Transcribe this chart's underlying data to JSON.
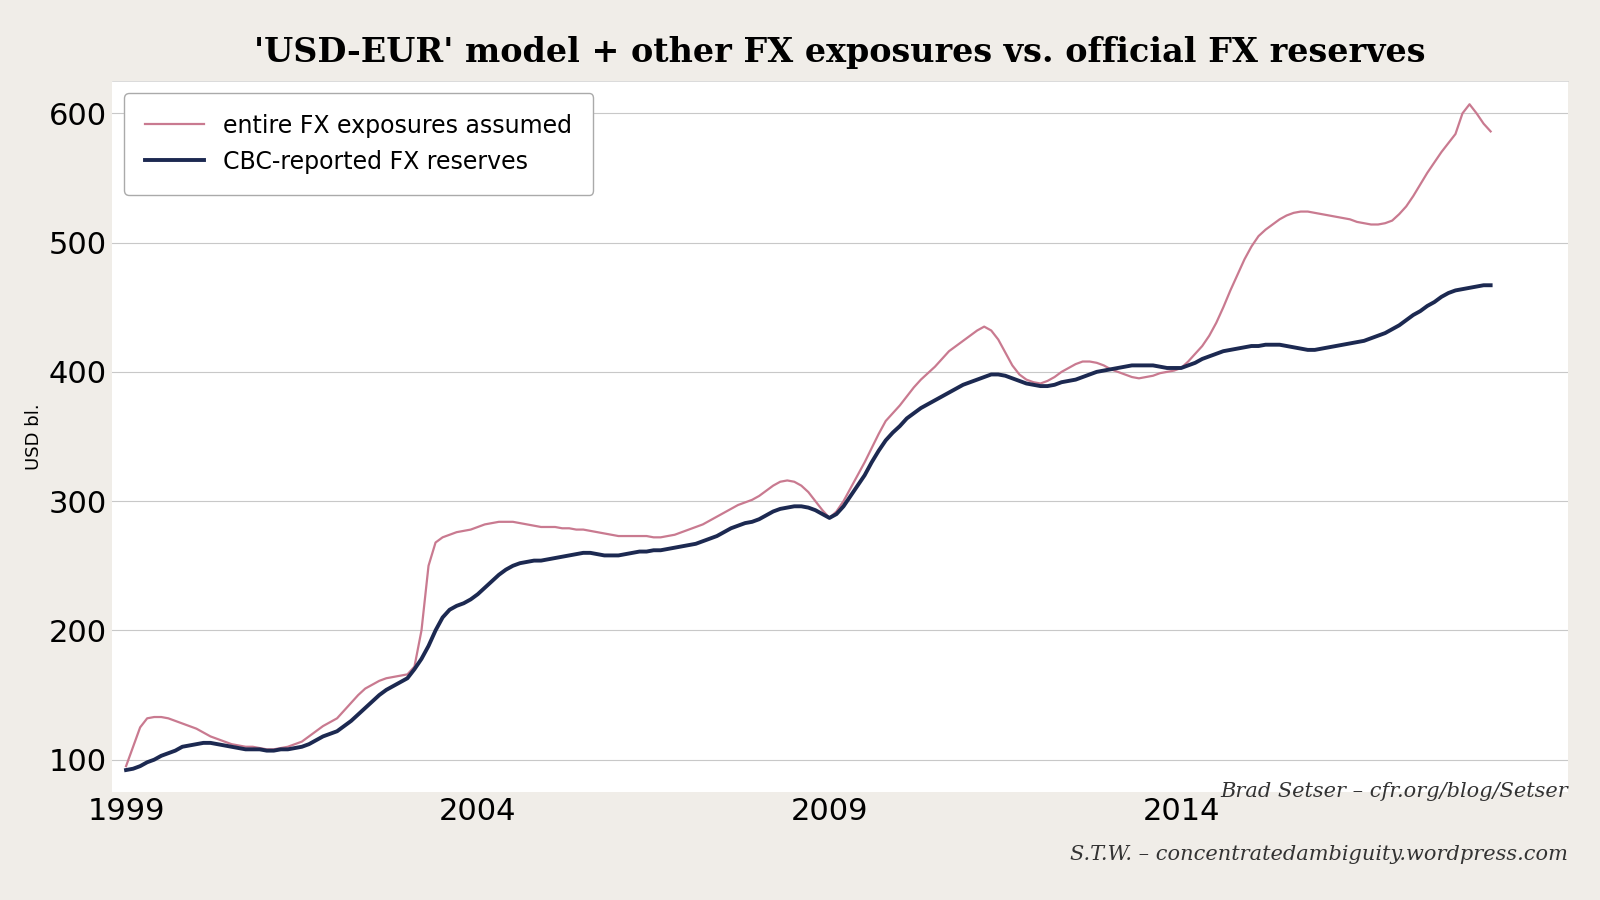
{
  "title": "'USD-EUR' model + other FX exposures vs. official FX reserves",
  "ylabel": "USD bl.",
  "background_color": "#ffffff",
  "fig_background_color": "#f0ede8",
  "line1_label": "CBC-reported FX reserves",
  "line1_color": "#1c2951",
  "line2_label": "entire FX exposures assumed",
  "line2_color": "#c97a90",
  "ylim": [
    75,
    625
  ],
  "yticks": [
    100,
    200,
    300,
    400,
    500,
    600
  ],
  "x_start_year": 1998.8,
  "x_end_year": 2019.5,
  "xticks_labels": [
    "1999",
    "2004",
    "2009",
    "2014"
  ],
  "xticks_values": [
    1999,
    2004,
    2009,
    2014
  ],
  "annotation1": "Brad Setser – cfr.org/blog/Setser",
  "annotation2": "S.T.W. – concentratedambiguity.wordpress.com",
  "cbc_data": [
    [
      1999.0,
      92
    ],
    [
      1999.1,
      93
    ],
    [
      1999.2,
      95
    ],
    [
      1999.3,
      98
    ],
    [
      1999.4,
      100
    ],
    [
      1999.5,
      103
    ],
    [
      1999.6,
      105
    ],
    [
      1999.7,
      107
    ],
    [
      1999.8,
      110
    ],
    [
      1999.9,
      111
    ],
    [
      2000.0,
      112
    ],
    [
      2000.1,
      113
    ],
    [
      2000.2,
      113
    ],
    [
      2000.3,
      112
    ],
    [
      2000.4,
      111
    ],
    [
      2000.5,
      110
    ],
    [
      2000.6,
      109
    ],
    [
      2000.7,
      108
    ],
    [
      2000.8,
      108
    ],
    [
      2000.9,
      108
    ],
    [
      2001.0,
      107
    ],
    [
      2001.1,
      107
    ],
    [
      2001.2,
      108
    ],
    [
      2001.3,
      108
    ],
    [
      2001.4,
      109
    ],
    [
      2001.5,
      110
    ],
    [
      2001.6,
      112
    ],
    [
      2001.7,
      115
    ],
    [
      2001.8,
      118
    ],
    [
      2001.9,
      120
    ],
    [
      2002.0,
      122
    ],
    [
      2002.1,
      126
    ],
    [
      2002.2,
      130
    ],
    [
      2002.3,
      135
    ],
    [
      2002.4,
      140
    ],
    [
      2002.5,
      145
    ],
    [
      2002.6,
      150
    ],
    [
      2002.7,
      154
    ],
    [
      2002.8,
      157
    ],
    [
      2002.9,
      160
    ],
    [
      2003.0,
      163
    ],
    [
      2003.1,
      170
    ],
    [
      2003.2,
      178
    ],
    [
      2003.3,
      188
    ],
    [
      2003.4,
      200
    ],
    [
      2003.5,
      210
    ],
    [
      2003.6,
      216
    ],
    [
      2003.7,
      219
    ],
    [
      2003.8,
      221
    ],
    [
      2003.9,
      224
    ],
    [
      2004.0,
      228
    ],
    [
      2004.1,
      233
    ],
    [
      2004.2,
      238
    ],
    [
      2004.3,
      243
    ],
    [
      2004.4,
      247
    ],
    [
      2004.5,
      250
    ],
    [
      2004.6,
      252
    ],
    [
      2004.7,
      253
    ],
    [
      2004.8,
      254
    ],
    [
      2004.9,
      254
    ],
    [
      2005.0,
      255
    ],
    [
      2005.1,
      256
    ],
    [
      2005.2,
      257
    ],
    [
      2005.3,
      258
    ],
    [
      2005.4,
      259
    ],
    [
      2005.5,
      260
    ],
    [
      2005.6,
      260
    ],
    [
      2005.7,
      259
    ],
    [
      2005.8,
      258
    ],
    [
      2005.9,
      258
    ],
    [
      2006.0,
      258
    ],
    [
      2006.1,
      259
    ],
    [
      2006.2,
      260
    ],
    [
      2006.3,
      261
    ],
    [
      2006.4,
      261
    ],
    [
      2006.5,
      262
    ],
    [
      2006.6,
      262
    ],
    [
      2006.7,
      263
    ],
    [
      2006.8,
      264
    ],
    [
      2006.9,
      265
    ],
    [
      2007.0,
      266
    ],
    [
      2007.1,
      267
    ],
    [
      2007.2,
      269
    ],
    [
      2007.3,
      271
    ],
    [
      2007.4,
      273
    ],
    [
      2007.5,
      276
    ],
    [
      2007.6,
      279
    ],
    [
      2007.7,
      281
    ],
    [
      2007.8,
      283
    ],
    [
      2007.9,
      284
    ],
    [
      2008.0,
      286
    ],
    [
      2008.1,
      289
    ],
    [
      2008.2,
      292
    ],
    [
      2008.3,
      294
    ],
    [
      2008.4,
      295
    ],
    [
      2008.5,
      296
    ],
    [
      2008.6,
      296
    ],
    [
      2008.7,
      295
    ],
    [
      2008.8,
      293
    ],
    [
      2008.9,
      290
    ],
    [
      2009.0,
      287
    ],
    [
      2009.1,
      290
    ],
    [
      2009.2,
      296
    ],
    [
      2009.3,
      304
    ],
    [
      2009.4,
      312
    ],
    [
      2009.5,
      320
    ],
    [
      2009.6,
      330
    ],
    [
      2009.7,
      339
    ],
    [
      2009.8,
      347
    ],
    [
      2009.9,
      353
    ],
    [
      2010.0,
      358
    ],
    [
      2010.1,
      364
    ],
    [
      2010.2,
      368
    ],
    [
      2010.3,
      372
    ],
    [
      2010.4,
      375
    ],
    [
      2010.5,
      378
    ],
    [
      2010.6,
      381
    ],
    [
      2010.7,
      384
    ],
    [
      2010.8,
      387
    ],
    [
      2010.9,
      390
    ],
    [
      2011.0,
      392
    ],
    [
      2011.1,
      394
    ],
    [
      2011.2,
      396
    ],
    [
      2011.3,
      398
    ],
    [
      2011.4,
      398
    ],
    [
      2011.5,
      397
    ],
    [
      2011.6,
      395
    ],
    [
      2011.7,
      393
    ],
    [
      2011.8,
      391
    ],
    [
      2011.9,
      390
    ],
    [
      2012.0,
      389
    ],
    [
      2012.1,
      389
    ],
    [
      2012.2,
      390
    ],
    [
      2012.3,
      392
    ],
    [
      2012.4,
      393
    ],
    [
      2012.5,
      394
    ],
    [
      2012.6,
      396
    ],
    [
      2012.7,
      398
    ],
    [
      2012.8,
      400
    ],
    [
      2012.9,
      401
    ],
    [
      2013.0,
      402
    ],
    [
      2013.1,
      403
    ],
    [
      2013.2,
      404
    ],
    [
      2013.3,
      405
    ],
    [
      2013.4,
      405
    ],
    [
      2013.5,
      405
    ],
    [
      2013.6,
      405
    ],
    [
      2013.7,
      404
    ],
    [
      2013.8,
      403
    ],
    [
      2013.9,
      403
    ],
    [
      2014.0,
      403
    ],
    [
      2014.1,
      405
    ],
    [
      2014.2,
      407
    ],
    [
      2014.3,
      410
    ],
    [
      2014.4,
      412
    ],
    [
      2014.5,
      414
    ],
    [
      2014.6,
      416
    ],
    [
      2014.7,
      417
    ],
    [
      2014.8,
      418
    ],
    [
      2014.9,
      419
    ],
    [
      2015.0,
      420
    ],
    [
      2015.1,
      420
    ],
    [
      2015.2,
      421
    ],
    [
      2015.3,
      421
    ],
    [
      2015.4,
      421
    ],
    [
      2015.5,
      420
    ],
    [
      2015.6,
      419
    ],
    [
      2015.7,
      418
    ],
    [
      2015.8,
      417
    ],
    [
      2015.9,
      417
    ],
    [
      2016.0,
      418
    ],
    [
      2016.1,
      419
    ],
    [
      2016.2,
      420
    ],
    [
      2016.3,
      421
    ],
    [
      2016.4,
      422
    ],
    [
      2016.5,
      423
    ],
    [
      2016.6,
      424
    ],
    [
      2016.7,
      426
    ],
    [
      2016.8,
      428
    ],
    [
      2016.9,
      430
    ],
    [
      2017.0,
      433
    ],
    [
      2017.1,
      436
    ],
    [
      2017.2,
      440
    ],
    [
      2017.3,
      444
    ],
    [
      2017.4,
      447
    ],
    [
      2017.5,
      451
    ],
    [
      2017.6,
      454
    ],
    [
      2017.7,
      458
    ],
    [
      2017.8,
      461
    ],
    [
      2017.9,
      463
    ],
    [
      2018.0,
      464
    ],
    [
      2018.1,
      465
    ],
    [
      2018.2,
      466
    ],
    [
      2018.3,
      467
    ],
    [
      2018.4,
      467
    ]
  ],
  "fx_data": [
    [
      1999.0,
      95
    ],
    [
      1999.1,
      110
    ],
    [
      1999.2,
      125
    ],
    [
      1999.3,
      132
    ],
    [
      1999.4,
      133
    ],
    [
      1999.5,
      133
    ],
    [
      1999.6,
      132
    ],
    [
      1999.7,
      130
    ],
    [
      1999.8,
      128
    ],
    [
      1999.9,
      126
    ],
    [
      2000.0,
      124
    ],
    [
      2000.1,
      121
    ],
    [
      2000.2,
      118
    ],
    [
      2000.3,
      116
    ],
    [
      2000.4,
      114
    ],
    [
      2000.5,
      112
    ],
    [
      2000.6,
      111
    ],
    [
      2000.7,
      110
    ],
    [
      2000.8,
      110
    ],
    [
      2000.9,
      109
    ],
    [
      2001.0,
      108
    ],
    [
      2001.1,
      108
    ],
    [
      2001.2,
      109
    ],
    [
      2001.3,
      110
    ],
    [
      2001.4,
      112
    ],
    [
      2001.5,
      114
    ],
    [
      2001.6,
      118
    ],
    [
      2001.7,
      122
    ],
    [
      2001.8,
      126
    ],
    [
      2001.9,
      129
    ],
    [
      2002.0,
      132
    ],
    [
      2002.1,
      138
    ],
    [
      2002.2,
      144
    ],
    [
      2002.3,
      150
    ],
    [
      2002.4,
      155
    ],
    [
      2002.5,
      158
    ],
    [
      2002.6,
      161
    ],
    [
      2002.7,
      163
    ],
    [
      2002.8,
      164
    ],
    [
      2002.9,
      165
    ],
    [
      2003.0,
      166
    ],
    [
      2003.1,
      172
    ],
    [
      2003.2,
      200
    ],
    [
      2003.3,
      250
    ],
    [
      2003.4,
      268
    ],
    [
      2003.5,
      272
    ],
    [
      2003.6,
      274
    ],
    [
      2003.7,
      276
    ],
    [
      2003.8,
      277
    ],
    [
      2003.9,
      278
    ],
    [
      2004.0,
      280
    ],
    [
      2004.1,
      282
    ],
    [
      2004.2,
      283
    ],
    [
      2004.3,
      284
    ],
    [
      2004.4,
      284
    ],
    [
      2004.5,
      284
    ],
    [
      2004.6,
      283
    ],
    [
      2004.7,
      282
    ],
    [
      2004.8,
      281
    ],
    [
      2004.9,
      280
    ],
    [
      2005.0,
      280
    ],
    [
      2005.1,
      280
    ],
    [
      2005.2,
      279
    ],
    [
      2005.3,
      279
    ],
    [
      2005.4,
      278
    ],
    [
      2005.5,
      278
    ],
    [
      2005.6,
      277
    ],
    [
      2005.7,
      276
    ],
    [
      2005.8,
      275
    ],
    [
      2005.9,
      274
    ],
    [
      2006.0,
      273
    ],
    [
      2006.1,
      273
    ],
    [
      2006.2,
      273
    ],
    [
      2006.3,
      273
    ],
    [
      2006.4,
      273
    ],
    [
      2006.5,
      272
    ],
    [
      2006.6,
      272
    ],
    [
      2006.7,
      273
    ],
    [
      2006.8,
      274
    ],
    [
      2006.9,
      276
    ],
    [
      2007.0,
      278
    ],
    [
      2007.1,
      280
    ],
    [
      2007.2,
      282
    ],
    [
      2007.3,
      285
    ],
    [
      2007.4,
      288
    ],
    [
      2007.5,
      291
    ],
    [
      2007.6,
      294
    ],
    [
      2007.7,
      297
    ],
    [
      2007.8,
      299
    ],
    [
      2007.9,
      301
    ],
    [
      2008.0,
      304
    ],
    [
      2008.1,
      308
    ],
    [
      2008.2,
      312
    ],
    [
      2008.3,
      315
    ],
    [
      2008.4,
      316
    ],
    [
      2008.5,
      315
    ],
    [
      2008.6,
      312
    ],
    [
      2008.7,
      307
    ],
    [
      2008.8,
      300
    ],
    [
      2008.9,
      293
    ],
    [
      2009.0,
      287
    ],
    [
      2009.1,
      292
    ],
    [
      2009.2,
      300
    ],
    [
      2009.3,
      310
    ],
    [
      2009.4,
      320
    ],
    [
      2009.5,
      330
    ],
    [
      2009.6,
      341
    ],
    [
      2009.7,
      352
    ],
    [
      2009.8,
      362
    ],
    [
      2009.9,
      368
    ],
    [
      2010.0,
      374
    ],
    [
      2010.1,
      381
    ],
    [
      2010.2,
      388
    ],
    [
      2010.3,
      394
    ],
    [
      2010.4,
      399
    ],
    [
      2010.5,
      404
    ],
    [
      2010.6,
      410
    ],
    [
      2010.7,
      416
    ],
    [
      2010.8,
      420
    ],
    [
      2010.9,
      424
    ],
    [
      2011.0,
      428
    ],
    [
      2011.1,
      432
    ],
    [
      2011.2,
      435
    ],
    [
      2011.3,
      432
    ],
    [
      2011.4,
      425
    ],
    [
      2011.5,
      415
    ],
    [
      2011.6,
      405
    ],
    [
      2011.7,
      398
    ],
    [
      2011.8,
      394
    ],
    [
      2011.9,
      392
    ],
    [
      2012.0,
      391
    ],
    [
      2012.1,
      393
    ],
    [
      2012.2,
      396
    ],
    [
      2012.3,
      400
    ],
    [
      2012.4,
      403
    ],
    [
      2012.5,
      406
    ],
    [
      2012.6,
      408
    ],
    [
      2012.7,
      408
    ],
    [
      2012.8,
      407
    ],
    [
      2012.9,
      405
    ],
    [
      2013.0,
      402
    ],
    [
      2013.1,
      400
    ],
    [
      2013.2,
      398
    ],
    [
      2013.3,
      396
    ],
    [
      2013.4,
      395
    ],
    [
      2013.5,
      396
    ],
    [
      2013.6,
      397
    ],
    [
      2013.7,
      399
    ],
    [
      2013.8,
      400
    ],
    [
      2013.9,
      401
    ],
    [
      2014.0,
      403
    ],
    [
      2014.1,
      408
    ],
    [
      2014.2,
      414
    ],
    [
      2014.3,
      420
    ],
    [
      2014.4,
      428
    ],
    [
      2014.5,
      438
    ],
    [
      2014.6,
      450
    ],
    [
      2014.7,
      463
    ],
    [
      2014.8,
      475
    ],
    [
      2014.9,
      487
    ],
    [
      2015.0,
      497
    ],
    [
      2015.1,
      505
    ],
    [
      2015.2,
      510
    ],
    [
      2015.3,
      514
    ],
    [
      2015.4,
      518
    ],
    [
      2015.5,
      521
    ],
    [
      2015.6,
      523
    ],
    [
      2015.7,
      524
    ],
    [
      2015.8,
      524
    ],
    [
      2015.9,
      523
    ],
    [
      2016.0,
      522
    ],
    [
      2016.1,
      521
    ],
    [
      2016.2,
      520
    ],
    [
      2016.3,
      519
    ],
    [
      2016.4,
      518
    ],
    [
      2016.5,
      516
    ],
    [
      2016.6,
      515
    ],
    [
      2016.7,
      514
    ],
    [
      2016.8,
      514
    ],
    [
      2016.9,
      515
    ],
    [
      2017.0,
      517
    ],
    [
      2017.1,
      522
    ],
    [
      2017.2,
      528
    ],
    [
      2017.3,
      536
    ],
    [
      2017.4,
      545
    ],
    [
      2017.5,
      554
    ],
    [
      2017.6,
      562
    ],
    [
      2017.7,
      570
    ],
    [
      2017.8,
      577
    ],
    [
      2017.9,
      584
    ],
    [
      2018.0,
      600
    ],
    [
      2018.1,
      607
    ],
    [
      2018.2,
      600
    ],
    [
      2018.3,
      592
    ],
    [
      2018.4,
      586
    ]
  ]
}
